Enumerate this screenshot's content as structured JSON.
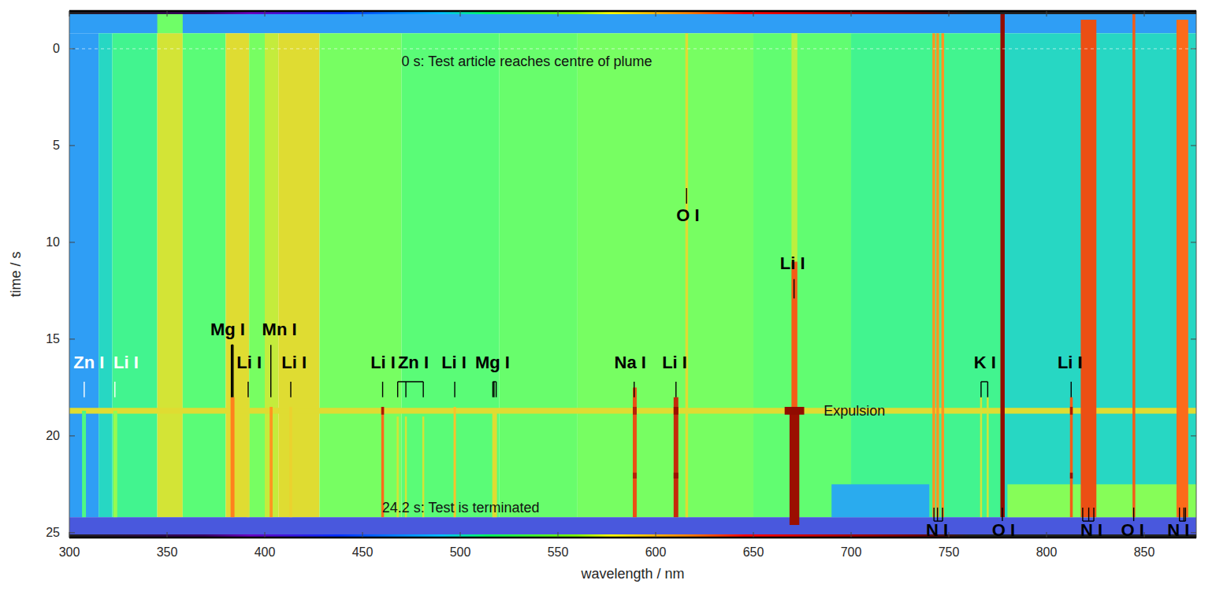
{
  "chart_data": {
    "type": "heatmap",
    "xlabel": "wavelength / nm",
    "ylabel": "time / s",
    "xlim": [
      300,
      876.6
    ],
    "ylim": [
      25.25,
      -1.95
    ],
    "xticks": [
      300,
      350,
      400,
      450,
      500,
      550,
      600,
      650,
      700,
      750,
      800,
      850
    ],
    "yticks": [
      0,
      5,
      10,
      15,
      20,
      25
    ],
    "grid": false,
    "color_range": [
      0,
      1
    ],
    "cells": [
      {
        "x0": 300,
        "x1": 876.6,
        "t0": -1.95,
        "t1": -0.8,
        "value": 0.2
      },
      {
        "x0": 345,
        "x1": 358,
        "t0": -1.95,
        "t1": -0.8,
        "value": 0.45
      },
      {
        "x0": 300,
        "x1": 315,
        "t0": -0.8,
        "t1": 24.2,
        "value": 0.2
      },
      {
        "x0": 315,
        "x1": 322,
        "t0": -0.8,
        "t1": 24.2,
        "value": 0.3
      },
      {
        "x0": 322,
        "x1": 345,
        "t0": -0.8,
        "t1": 24.2,
        "value": 0.38
      },
      {
        "x0": 345,
        "x1": 358,
        "t0": -0.8,
        "t1": 24.2,
        "value": 0.58
      },
      {
        "x0": 358,
        "x1": 380,
        "t0": -0.8,
        "t1": 24.2,
        "value": 0.42
      },
      {
        "x0": 380,
        "x1": 392,
        "t0": -0.8,
        "t1": 24.2,
        "value": 0.6
      },
      {
        "x0": 392,
        "x1": 400,
        "t0": -0.8,
        "t1": 24.2,
        "value": 0.46
      },
      {
        "x0": 400,
        "x1": 407,
        "t0": -0.8,
        "t1": 24.2,
        "value": 0.56
      },
      {
        "x0": 407,
        "x1": 428,
        "t0": -0.8,
        "t1": 24.2,
        "value": 0.6
      },
      {
        "x0": 428,
        "x1": 470,
        "t0": -0.8,
        "t1": 24.2,
        "value": 0.46
      },
      {
        "x0": 470,
        "x1": 520,
        "t0": -0.8,
        "t1": 24.2,
        "value": 0.42
      },
      {
        "x0": 520,
        "x1": 560,
        "t0": -0.8,
        "t1": 24.2,
        "value": 0.44
      },
      {
        "x0": 560,
        "x1": 650,
        "t0": -0.8,
        "t1": 24.2,
        "value": 0.46
      },
      {
        "x0": 650,
        "x1": 700,
        "t0": -0.8,
        "t1": 24.2,
        "value": 0.43
      },
      {
        "x0": 700,
        "x1": 777,
        "t0": -0.8,
        "t1": 24.2,
        "value": 0.38
      },
      {
        "x0": 777,
        "x1": 876.6,
        "t0": -0.8,
        "t1": 24.2,
        "value": 0.3
      },
      {
        "x0": 300,
        "x1": 876.6,
        "t0": 24.2,
        "t1": 25.25,
        "value": 0.1
      },
      {
        "x0": 690,
        "x1": 740,
        "t0": 22.5,
        "t1": 24.2,
        "value": 0.22
      },
      {
        "x0": 780,
        "x1": 876.6,
        "t0": 22.5,
        "t1": 24.2,
        "value": 0.48
      },
      {
        "x0": 300,
        "x1": 876.6,
        "t0": 18.55,
        "t1": 18.85,
        "value": 0.6
      },
      {
        "x0": 306.5,
        "x1": 308.5,
        "t0": 18.7,
        "t1": 24.2,
        "value": 0.4
      },
      {
        "x0": 322.5,
        "x1": 324.5,
        "t0": 18.7,
        "t1": 24.2,
        "value": 0.5
      },
      {
        "x0": 382.5,
        "x1": 384.5,
        "t0": 18,
        "t1": 24.2,
        "value": 0.75
      },
      {
        "x0": 390.8,
        "x1": 392.2,
        "t0": 18,
        "t1": 24.2,
        "value": 0.6
      },
      {
        "x0": 402.5,
        "x1": 404,
        "t0": 18.5,
        "t1": 24.2,
        "value": 0.72
      },
      {
        "x0": 412.6,
        "x1": 414,
        "t0": 18.5,
        "t1": 24.2,
        "value": 0.62
      },
      {
        "x0": 459.6,
        "x1": 461,
        "t0": 18.5,
        "t1": 24.2,
        "value": 0.78
      },
      {
        "x0": 467.5,
        "x1": 468.5,
        "t0": 19,
        "t1": 24.2,
        "value": 0.58
      },
      {
        "x0": 471.7,
        "x1": 472.7,
        "t0": 19,
        "t1": 24.2,
        "value": 0.58
      },
      {
        "x0": 480.6,
        "x1": 481.6,
        "t0": 19,
        "t1": 24.2,
        "value": 0.58
      },
      {
        "x0": 496.6,
        "x1": 497.8,
        "t0": 18.5,
        "t1": 24.2,
        "value": 0.65
      },
      {
        "x0": 516.4,
        "x1": 518.8,
        "t0": 18.7,
        "t1": 24.2,
        "value": 0.6
      },
      {
        "x0": 588.3,
        "x1": 590.3,
        "t0": 17.5,
        "t1": 24.2,
        "value": 0.82
      },
      {
        "x0": 609.2,
        "x1": 611.6,
        "t0": 18,
        "t1": 24.2,
        "value": 0.88
      },
      {
        "x0": 615.2,
        "x1": 616.6,
        "t0": -0.8,
        "t1": 24.2,
        "value": 0.6
      },
      {
        "x0": 669.5,
        "x1": 672.5,
        "t0": -0.8,
        "t1": 11,
        "value": 0.55
      },
      {
        "x0": 669.5,
        "x1": 672.5,
        "t0": 11,
        "t1": 18.7,
        "value": 0.8
      },
      {
        "x0": 668.5,
        "x1": 673.5,
        "t0": 18.7,
        "t1": 24.6,
        "value": 0.95
      },
      {
        "x0": 741.6,
        "x1": 743,
        "t0": -0.8,
        "t1": 24.2,
        "value": 0.72
      },
      {
        "x0": 743.6,
        "x1": 745,
        "t0": -0.8,
        "t1": 24.2,
        "value": 0.72
      },
      {
        "x0": 746.2,
        "x1": 747.6,
        "t0": -0.8,
        "t1": 24.2,
        "value": 0.72
      },
      {
        "x0": 766,
        "x1": 767,
        "t0": 18,
        "t1": 24.2,
        "value": 0.58
      },
      {
        "x0": 769.4,
        "x1": 770.4,
        "t0": 18,
        "t1": 24.2,
        "value": 0.58
      },
      {
        "x0": 776.4,
        "x1": 778.6,
        "t0": -1.95,
        "t1": 24.2,
        "value": 0.97
      },
      {
        "x0": 812,
        "x1": 813.4,
        "t0": 18,
        "t1": 24.2,
        "value": 0.8
      },
      {
        "x0": 817.5,
        "x1": 825.5,
        "t0": -1.5,
        "t1": 24.2,
        "value": 0.82
      },
      {
        "x0": 844,
        "x1": 845.4,
        "t0": -1.95,
        "t1": 24.2,
        "value": 0.8
      },
      {
        "x0": 866.5,
        "x1": 872.5,
        "t0": -1.5,
        "t1": 24.2,
        "value": 0.78
      },
      {
        "x0": 459.6,
        "x1": 461,
        "t0": 18.5,
        "t1": 18.9,
        "value": 0.92
      },
      {
        "x0": 588.3,
        "x1": 590.3,
        "t0": 18.5,
        "t1": 18.9,
        "value": 0.9
      },
      {
        "x0": 609.2,
        "x1": 611.6,
        "t0": 18.5,
        "t1": 18.9,
        "value": 0.95
      },
      {
        "x0": 812,
        "x1": 813.4,
        "t0": 18.5,
        "t1": 18.9,
        "value": 0.92
      },
      {
        "x0": 666,
        "x1": 676,
        "t0": 18.5,
        "t1": 18.9,
        "value": 0.98
      },
      {
        "x0": 588.3,
        "x1": 590.3,
        "t0": 21.9,
        "t1": 22.2,
        "value": 0.9
      },
      {
        "x0": 609.2,
        "x1": 611.6,
        "t0": 21.9,
        "t1": 22.2,
        "value": 0.95
      },
      {
        "x0": 812,
        "x1": 813.4,
        "t0": 21.9,
        "t1": 22.2,
        "value": 0.95
      }
    ],
    "line_labels": [
      {
        "text": "Zn I",
        "wavelengths": [
          307.6
        ],
        "label_wl": 310,
        "label_t": 16.2,
        "mark_t": [
          17.2,
          18.0
        ],
        "color": "#ffffff"
      },
      {
        "text": "Li I",
        "wavelengths": [
          323.3
        ],
        "label_wl": 329,
        "label_t": 16.2,
        "mark_t": [
          17.2,
          18.0
        ],
        "color": "#ffffff"
      },
      {
        "text": "Mg I",
        "wavelengths": [
          382.9,
          383.2,
          383.8
        ],
        "label_wl": 381,
        "label_t": 14.5,
        "mark_t": [
          15.3,
          18.0
        ],
        "color": "#000000"
      },
      {
        "text": "Li I",
        "wavelengths": [
          391.5
        ],
        "label_wl": 392,
        "label_t": 16.2,
        "mark_t": [
          17.2,
          18.0
        ],
        "color": "#000000"
      },
      {
        "text": "Mn I",
        "wavelengths": [
          403.1
        ],
        "label_wl": 407.5,
        "label_t": 14.5,
        "mark_t": [
          15.3,
          18.0
        ],
        "color": "#000000"
      },
      {
        "text": "Li I",
        "wavelengths": [
          413.3
        ],
        "label_wl": 415,
        "label_t": 16.2,
        "mark_t": [
          17.2,
          18.0
        ],
        "color": "#000000"
      },
      {
        "text": "Li I",
        "wavelengths": [
          460.3
        ],
        "label_wl": 460.5,
        "label_t": 16.2,
        "mark_t": [
          17.2,
          18.0
        ],
        "color": "#000000"
      },
      {
        "text": "Zn I",
        "wavelengths": [
          468.0,
          472.2,
          481.1
        ],
        "label_wl": 476,
        "label_t": 16.2,
        "mark_t": [
          17.2,
          18.0
        ],
        "color": "#000000"
      },
      {
        "text": "Li I",
        "wavelengths": [
          497.2
        ],
        "label_wl": 496.8,
        "label_t": 16.2,
        "mark_t": [
          17.2,
          18.0
        ],
        "color": "#000000"
      },
      {
        "text": "Mg I",
        "wavelengths": [
          516.7,
          517.3,
          518.4
        ],
        "label_wl": 516.5,
        "label_t": 16.2,
        "mark_t": [
          17.2,
          18.0
        ],
        "color": "#000000"
      },
      {
        "text": "Na I",
        "wavelengths": [
          589.0
        ],
        "label_wl": 587,
        "label_t": 16.2,
        "mark_t": [
          17.2,
          18.0
        ],
        "color": "#000000"
      },
      {
        "text": "Li I",
        "wavelengths": [
          610.4
        ],
        "label_wl": 609.7,
        "label_t": 16.2,
        "mark_t": [
          17.2,
          18.0
        ],
        "color": "#000000"
      },
      {
        "text": "O I",
        "wavelengths": [
          615.8
        ],
        "label_wl": 616.5,
        "label_t": 8.6,
        "mark_t": [
          7.2,
          8.0
        ],
        "color": "#000000"
      },
      {
        "text": "Li I",
        "wavelengths": [
          670.8
        ],
        "label_wl": 670,
        "label_t": 11.1,
        "mark_t": [
          11.9,
          12.9
        ],
        "color": "#000000"
      },
      {
        "text": "K I",
        "wavelengths": [
          766.5,
          769.9
        ],
        "label_wl": 768.5,
        "label_t": 16.2,
        "mark_t": [
          17.2,
          18.0
        ],
        "color": "#000000"
      },
      {
        "text": "Li I",
        "wavelengths": [
          812.6
        ],
        "label_wl": 812,
        "label_t": 16.2,
        "mark_t": [
          17.2,
          18.0
        ],
        "color": "#000000"
      },
      {
        "text": "N I",
        "wavelengths": [
          742.4,
          744.2,
          746.8
        ],
        "label_wl": 744,
        "label_t": 24.85,
        "mark_t": [
          23.7,
          24.4
        ],
        "color": "#000000"
      },
      {
        "text": "O I",
        "wavelengths": [
          777.4
        ],
        "label_wl": 778,
        "label_t": 24.85,
        "mark_t": [
          23.7,
          24.4
        ],
        "color": "#000000"
      },
      {
        "text": "N I",
        "wavelengths": [
          818.5,
          821.6,
          824.2
        ],
        "label_wl": 823,
        "label_t": 24.85,
        "mark_t": [
          23.7,
          24.4
        ],
        "color": "#000000"
      },
      {
        "text": "O I",
        "wavelengths": [
          844.6
        ],
        "label_wl": 844,
        "label_t": 24.85,
        "mark_t": [
          23.7,
          24.4
        ],
        "color": "#000000"
      },
      {
        "text": "N I",
        "wavelengths": [
          868.0,
          870.3,
          871.1
        ],
        "label_wl": 867.5,
        "label_t": 24.85,
        "mark_t": [
          23.7,
          24.4
        ],
        "color": "#000000"
      }
    ],
    "annotations": [
      {
        "text": "0 s: Test article reaches centre of plume",
        "wl": 470,
        "t": 0.65,
        "line_t": 0
      },
      {
        "text": "Expulsion",
        "wl": 686,
        "t": 18.7
      },
      {
        "text": "24.2 s: Test is terminated",
        "wl": 460,
        "t": 23.7
      }
    ]
  }
}
